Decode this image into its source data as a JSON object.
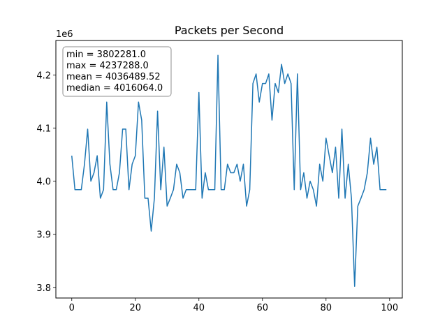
{
  "chart_data": {
    "type": "line",
    "title": "Packets per Second",
    "xlabel": "",
    "ylabel": "",
    "offset_label": "1e6",
    "xlim": [
      -5,
      104
    ],
    "ylim": [
      3.78,
      4.265
    ],
    "x_ticks": [
      0,
      20,
      40,
      60,
      80,
      100
    ],
    "y_ticks": [
      3.8,
      3.9,
      4.0,
      4.1,
      4.2
    ],
    "grid": false,
    "legend": "none",
    "line_color": "#1f77b4",
    "stats_box": {
      "position": "top-left",
      "lines": [
        "min = 3802281.0",
        "max = 4237288.0",
        "mean = 4036489.52",
        "median = 4016064.0"
      ]
    },
    "series": [
      {
        "x": [
          0,
          1,
          2,
          3,
          4,
          5,
          6,
          7,
          8,
          9,
          10,
          11,
          12,
          13,
          14,
          15,
          16,
          17,
          18,
          19,
          20,
          21,
          22,
          23,
          24,
          25,
          26,
          27,
          28,
          29,
          30,
          31,
          32,
          33,
          34,
          35,
          36,
          37,
          38,
          39,
          40,
          41,
          42,
          43,
          44,
          45,
          46,
          47,
          48,
          49,
          50,
          51,
          52,
          53,
          54,
          55,
          56,
          57,
          58,
          59,
          60,
          61,
          62,
          63,
          64,
          65,
          66,
          67,
          68,
          69,
          70,
          71,
          72,
          73,
          74,
          75,
          76,
          77,
          78,
          79,
          80,
          81,
          82,
          83,
          84,
          85,
          86,
          87,
          88,
          89,
          90,
          91,
          92,
          93,
          94,
          95,
          96,
          97,
          98,
          99
        ],
        "values": [
          4.048,
          3.984,
          3.984,
          3.984,
          4.032,
          4.098,
          4.0,
          4.016,
          4.048,
          3.968,
          3.984,
          4.149,
          4.032,
          3.984,
          3.984,
          4.016,
          4.098,
          4.098,
          3.984,
          4.032,
          4.048,
          4.149,
          4.115,
          3.968,
          3.968,
          3.906,
          3.968,
          4.132,
          3.984,
          4.064,
          3.953,
          3.968,
          3.984,
          4.032,
          4.016,
          3.968,
          3.984,
          3.984,
          3.984,
          3.984,
          4.167,
          3.968,
          4.016,
          3.984,
          3.984,
          3.984,
          4.237,
          3.984,
          3.984,
          4.032,
          4.016,
          4.016,
          4.032,
          4.0,
          4.032,
          3.953,
          3.984,
          4.184,
          4.202,
          4.149,
          4.184,
          4.184,
          4.202,
          4.115,
          4.184,
          4.167,
          4.22,
          4.184,
          4.202,
          4.184,
          3.984,
          4.202,
          3.984,
          4.016,
          3.968,
          4.0,
          3.984,
          3.953,
          4.032,
          4.0,
          4.081,
          4.048,
          4.016,
          4.064,
          3.968,
          4.098,
          3.968,
          4.032,
          3.968,
          3.802,
          3.953,
          3.968,
          3.984,
          4.016,
          4.081,
          4.032,
          4.064,
          3.984,
          3.984,
          3.984
        ]
      }
    ]
  }
}
